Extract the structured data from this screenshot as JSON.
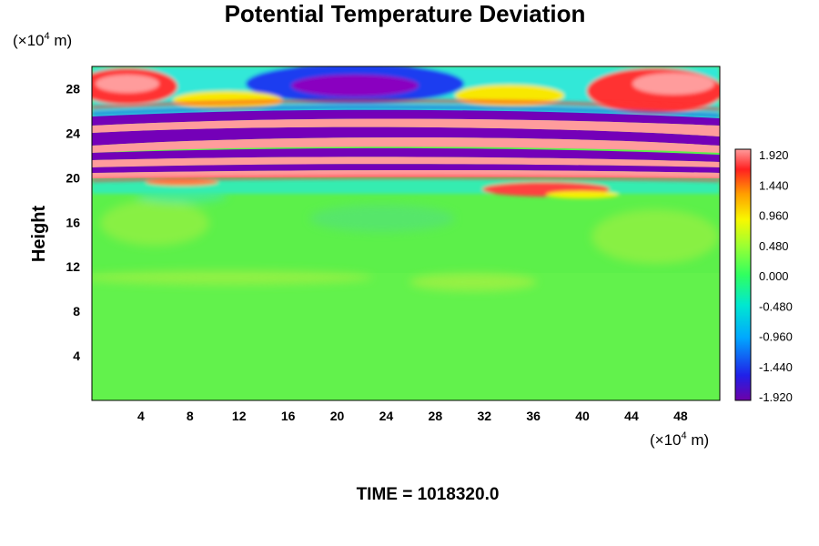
{
  "chart_data": {
    "type": "heatmap",
    "title": "Potential Temperature Deviation",
    "ylabel": "Height",
    "x_unit": {
      "prefix": "(×10",
      "exp": "4",
      "suffix": " m)"
    },
    "y_unit": {
      "prefix": "(×10",
      "exp": "4",
      "suffix": " m)"
    },
    "x_ticks": [
      "4",
      "8",
      "12",
      "16",
      "20",
      "24",
      "28",
      "32",
      "36",
      "40",
      "44",
      "48"
    ],
    "y_ticks": [
      "4",
      "8",
      "12",
      "16",
      "20",
      "24",
      "28"
    ],
    "xlim": [
      0,
      51.2
    ],
    "ylim": [
      0,
      30
    ],
    "colorbar": {
      "min": -1.92,
      "max": 1.92,
      "tick_labels": [
        "1.920",
        "1.440",
        "0.960",
        "0.480",
        "0.000",
        "-0.480",
        "-0.960",
        "-1.440",
        "-1.920"
      ],
      "colors": [
        "#6e00a8",
        "#2020e8",
        "#00a8ff",
        "#00e8d0",
        "#30ff60",
        "#a0ff30",
        "#f8f800",
        "#ffa000",
        "#ff2020",
        "#ff9c9c"
      ]
    },
    "time_text": "TIME = 1018320.0"
  }
}
